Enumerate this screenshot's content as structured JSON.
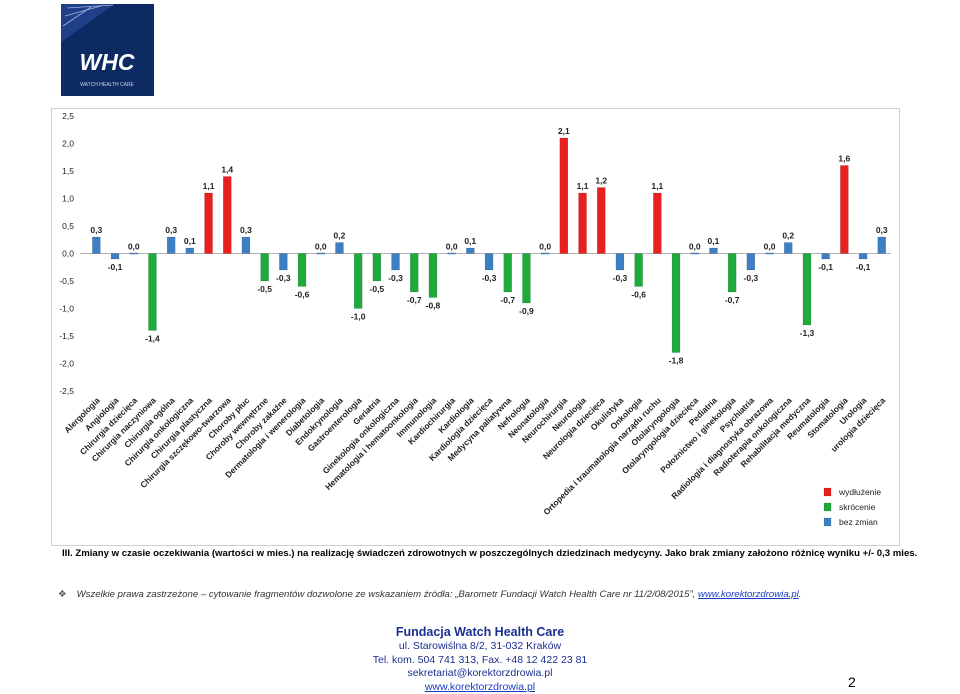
{
  "logo": {
    "text": "WHC",
    "subtitle": "WATCH HEALTH CARE"
  },
  "caption": "III. Zmiany w czasie oczekiwania (wartości w mies.) na realizację świadczeń zdrowotnych w poszczególnych dziedzinach medycyny. Jako brak zmiany założono różnicę wyniku +/- 0,3 mies.",
  "copyright": {
    "text": "Wszelkie prawa zastrzeżone – cytowanie fragmentów dozwolone ze wskazaniem źródła: „Barometr Fundacji Watch Health Care nr 11/2/08/2015”, ",
    "link": "www.korektorzdrowia.pl",
    "tail": "."
  },
  "footer": {
    "org": "Fundacja Watch Health Care",
    "address": "ul. Starowiślna 8/2, 31-032 Kraków",
    "phone": "Tel. kom. 504 741 313, Fax. +48 12 422 23 81",
    "email": "sekretariat@korektorzdrowia.pl",
    "website": "www.korektorzdrowia.pl"
  },
  "page_number": "2",
  "chart_data": {
    "type": "bar",
    "ylim": [
      -2.5,
      2.5
    ],
    "yticks": [
      "2,5",
      "2,0",
      "1,5",
      "1,0",
      "0,5",
      "0,0",
      "-0,5",
      "-1,0",
      "-1,5",
      "-2,0",
      "-2,5"
    ],
    "ytick_values": [
      2.5,
      2.0,
      1.5,
      1.0,
      0.5,
      0.0,
      -0.5,
      -1.0,
      -1.5,
      -2.0,
      -2.5
    ],
    "grid": false,
    "legend_position": "bottom-right",
    "colors": {
      "increase": "#e8201f",
      "decrease": "#1faa3c",
      "nochange": "#3e7fc3"
    },
    "legend": [
      {
        "key": "increase",
        "label": "wydłużenie"
      },
      {
        "key": "decrease",
        "label": "skrócenie"
      },
      {
        "key": "nochange",
        "label": "bez zmian"
      }
    ],
    "categories": [
      "Alergologia",
      "Angiologia",
      "Chirurgia dziecięca",
      "Chirurgia naczyniowa",
      "Chirurgia ogólna",
      "Chirurgia onkologiczna",
      "Chirurgia plastyczna",
      "Chirurgia szczękowo-twarzowa",
      "Choroby płuc",
      "Choroby wewnętrzne",
      "Choroby zakaźne",
      "Dermatologia i wenerologia",
      "Diabetologia",
      "Endokrynologia",
      "Gastroenterologia",
      "Geriatria",
      "Ginekologia onkologiczna",
      "Hematologia i hematoonkologia",
      "Immunologia",
      "Kardiochirurgia",
      "Kardiologia",
      "Kardiologia dziecięca",
      "Medycyna paliatywna",
      "Nefrologia",
      "Neonatologia",
      "Neurochirurgia",
      "Neurologia",
      "Neurologia dziecięca",
      "Okulistyka",
      "Onkologia",
      "Ortopedia i traumatologia narządu ruchu",
      "Otolaryngologia",
      "Otolaryngologia dziecięca",
      "Pediatria",
      "Położnictwo i ginekologia",
      "Psychiatria",
      "Radiologia i diagnostyka obrazowa",
      "Radioterapia onkologiczna",
      "Rehabilitacja medyczna",
      "Reumatologia",
      "Stomatologia",
      "Urologia",
      "urologia dziecięca"
    ],
    "values": [
      0.3,
      -0.1,
      0.0,
      -1.4,
      0.3,
      0.1,
      1.1,
      1.4,
      0.3,
      -0.5,
      -0.3,
      -0.6,
      0.0,
      0.2,
      -1.0,
      -0.5,
      -0.3,
      -0.7,
      -0.8,
      0.0,
      0.1,
      -0.3,
      -0.7,
      -0.9,
      0.0,
      2.1,
      1.1,
      1.2,
      -0.3,
      -0.6,
      1.1,
      -1.8,
      0.0,
      0.1,
      -0.7,
      -0.3,
      0.0,
      0.2,
      -1.3,
      -0.1,
      1.6,
      -0.1,
      0.3
    ],
    "labels": [
      "0,3",
      "-0,1",
      "0,0",
      "-1,4",
      "0,3",
      "0,1",
      "1,1",
      "1,4",
      "0,3",
      "-0,5",
      "-0,3",
      "-0,6",
      "0,0",
      "0,2",
      "-1,0",
      "-0,5",
      "-0,3",
      "-0,7",
      "-0,8",
      "0,0",
      "0,1",
      "-0,3",
      "-0,7",
      "-0,9",
      "0,0",
      "2,1",
      "1,1",
      "1,2",
      "-0,3",
      "-0,6",
      "1,1",
      "-1,8",
      "0,0",
      "0,1",
      "-0,7",
      "-0,3",
      "0,0",
      "0,2",
      "-1,3",
      "-0,1",
      "1,6",
      "-0,1",
      "0,3"
    ],
    "status": [
      "nochange",
      "nochange",
      "nochange",
      "decrease",
      "nochange",
      "nochange",
      "increase",
      "increase",
      "nochange",
      "decrease",
      "nochange",
      "decrease",
      "nochange",
      "nochange",
      "decrease",
      "decrease",
      "nochange",
      "decrease",
      "decrease",
      "nochange",
      "nochange",
      "nochange",
      "decrease",
      "decrease",
      "nochange",
      "increase",
      "increase",
      "increase",
      "nochange",
      "decrease",
      "increase",
      "decrease",
      "nochange",
      "nochange",
      "decrease",
      "nochange",
      "nochange",
      "nochange",
      "decrease",
      "nochange",
      "increase",
      "nochange",
      "nochange"
    ]
  }
}
